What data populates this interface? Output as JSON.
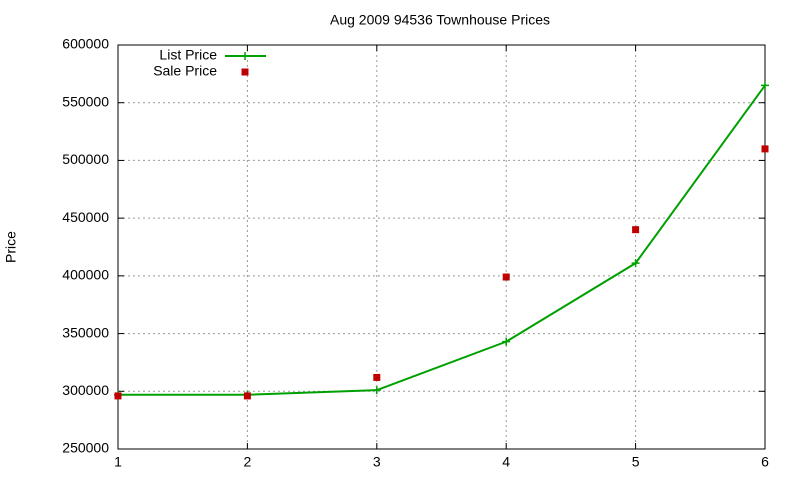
{
  "chart_data": {
    "type": "line",
    "title": "Aug 2009 94536 Townhouse Prices",
    "y_label": "Price",
    "x": [
      1,
      2,
      3,
      4,
      5,
      6
    ],
    "series": [
      {
        "name": "List Price",
        "color": "#00a000",
        "style": "linespoints",
        "values": [
          297000,
          297000,
          301000,
          343000,
          411000,
          565000
        ]
      },
      {
        "name": "Sale Price",
        "color": "#c00000",
        "style": "points",
        "values": [
          296000,
          296000,
          312000,
          399000,
          440000,
          510000
        ]
      }
    ],
    "xlim": [
      1,
      6
    ],
    "xticks": [
      1,
      2,
      3,
      4,
      5,
      6
    ],
    "ylim": [
      250000,
      600000
    ],
    "yticks": [
      250000,
      300000,
      350000,
      400000,
      450000,
      500000,
      550000,
      600000
    ],
    "grid": true,
    "legend": "top-left"
  }
}
